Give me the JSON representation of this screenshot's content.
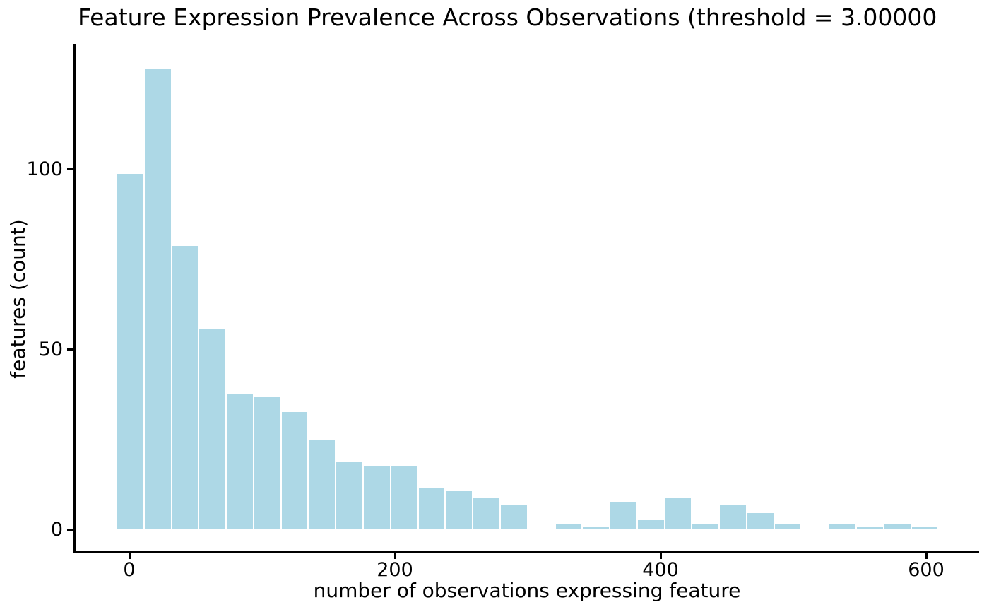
{
  "figure": {
    "background": "#ffffff"
  },
  "chart_data": {
    "type": "bar",
    "subtype": "histogram",
    "title": "Feature Expression Prevalence Across Observations (threshold = 3.00000",
    "title_clipped_at_right_edge": true,
    "xlabel": "number of observations expressing feature",
    "ylabel": "features (count)",
    "bar_color": "#add8e6",
    "bar_edge_color": "#ffffff",
    "axis_color": "#000000",
    "text_color": "#000000",
    "grid": false,
    "xticks": [
      0,
      200,
      400,
      600
    ],
    "yticks": [
      0,
      50,
      100
    ],
    "xlim": [
      -41,
      639
    ],
    "ylim": [
      -6.4,
      134.8
    ],
    "bin_edges": [
      -9.6,
      11.0,
      31.7,
      52.3,
      72.9,
      93.6,
      114.2,
      134.8,
      155.4,
      176.1,
      196.7,
      217.3,
      238.0,
      258.6,
      279.2,
      299.9,
      320.5,
      341.1,
      361.7,
      382.4,
      403.0,
      423.6,
      444.3,
      464.9,
      485.5,
      506.1,
      526.8,
      547.4,
      568.0,
      588.7,
      609.3
    ],
    "counts": [
      99,
      128,
      79,
      56,
      38,
      37,
      33,
      25,
      19,
      18,
      18,
      12,
      11,
      9,
      7,
      0,
      2,
      1,
      8,
      3,
      9,
      2,
      7,
      5,
      2,
      0,
      2,
      1,
      2,
      1
    ]
  }
}
